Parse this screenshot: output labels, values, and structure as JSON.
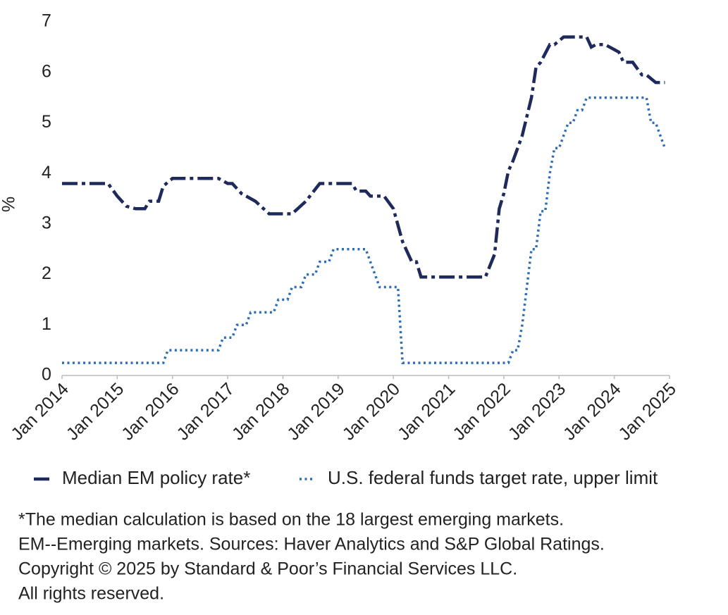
{
  "chart_data": {
    "type": "line",
    "ylabel": "%",
    "ylim": [
      0,
      7
    ],
    "yticks": [
      0,
      1,
      2,
      3,
      4,
      5,
      6,
      7
    ],
    "xlim": [
      "2014-01",
      "2025-01"
    ],
    "xticks": [
      {
        "value": "2014-01",
        "label": "Jan 2014"
      },
      {
        "value": "2015-01",
        "label": "Jan 2015"
      },
      {
        "value": "2016-01",
        "label": "Jan 2016"
      },
      {
        "value": "2017-01",
        "label": "Jan 2017"
      },
      {
        "value": "2018-01",
        "label": "Jan 2018"
      },
      {
        "value": "2019-01",
        "label": "Jan 2019"
      },
      {
        "value": "2020-01",
        "label": "Jan 2020"
      },
      {
        "value": "2021-01",
        "label": "Jan 2021"
      },
      {
        "value": "2022-01",
        "label": "Jan 2022"
      },
      {
        "value": "2023-01",
        "label": "Jan 2023"
      },
      {
        "value": "2024-01",
        "label": "Jan 2024"
      },
      {
        "value": "2025-01",
        "label": "Jan 2025"
      }
    ],
    "grid": false,
    "legend": "bottom",
    "series": [
      {
        "name": "Median EM policy rate*",
        "color": "#1f2a5c",
        "dash": "dashdot",
        "x": [
          "2014-01",
          "2014-11",
          "2015-01",
          "2015-03",
          "2015-05",
          "2015-07",
          "2015-08",
          "2015-10",
          "2015-11",
          "2016-01",
          "2016-11",
          "2017-01",
          "2017-02",
          "2017-04",
          "2017-07",
          "2017-10",
          "2018-03",
          "2018-06",
          "2018-09",
          "2019-04",
          "2019-05",
          "2019-07",
          "2019-08",
          "2019-11",
          "2020-01",
          "2020-03",
          "2020-05",
          "2020-06",
          "2020-07",
          "2021-09",
          "2021-11",
          "2021-12",
          "2022-01",
          "2022-02",
          "2022-03",
          "2022-05",
          "2022-07",
          "2022-08",
          "2022-09",
          "2022-11",
          "2022-12",
          "2023-02",
          "2023-07",
          "2023-08",
          "2023-09",
          "2023-11",
          "2024-01",
          "2024-02",
          "2024-03",
          "2024-05",
          "2024-07",
          "2024-08",
          "2024-10",
          "2024-12"
        ],
        "values": [
          3.8,
          3.8,
          3.55,
          3.35,
          3.3,
          3.3,
          3.45,
          3.45,
          3.75,
          3.9,
          3.9,
          3.8,
          3.8,
          3.6,
          3.45,
          3.2,
          3.2,
          3.45,
          3.8,
          3.8,
          3.65,
          3.65,
          3.55,
          3.55,
          3.3,
          2.65,
          2.25,
          2.25,
          1.95,
          1.95,
          2.4,
          3.3,
          3.6,
          4.05,
          4.25,
          4.75,
          5.5,
          6.1,
          6.2,
          6.55,
          6.55,
          6.7,
          6.7,
          6.5,
          6.55,
          6.55,
          6.45,
          6.4,
          6.2,
          6.2,
          5.95,
          5.95,
          5.8,
          5.8
        ]
      },
      {
        "name": "U.S. federal funds target rate, upper limit",
        "color": "#2e6db4",
        "dash": "dot",
        "x": [
          "2014-01",
          "2015-11",
          "2015-12",
          "2016-11",
          "2016-12",
          "2017-02",
          "2017-03",
          "2017-05",
          "2017-06",
          "2017-11",
          "2017-12",
          "2018-02",
          "2018-03",
          "2018-05",
          "2018-06",
          "2018-08",
          "2018-09",
          "2018-11",
          "2018-12",
          "2019-07",
          "2019-08",
          "2019-09",
          "2019-10",
          "2020-02",
          "2020-03",
          "2022-02",
          "2022-03",
          "2022-04",
          "2022-05",
          "2022-06",
          "2022-07",
          "2022-08",
          "2022-09",
          "2022-10",
          "2022-11",
          "2022-12",
          "2023-01",
          "2023-02",
          "2023-03",
          "2023-04",
          "2023-05",
          "2023-06",
          "2023-07",
          "2024-08",
          "2024-09",
          "2024-10",
          "2024-11",
          "2024-12"
        ],
        "values": [
          0.25,
          0.25,
          0.5,
          0.5,
          0.75,
          0.75,
          1.0,
          1.0,
          1.25,
          1.25,
          1.5,
          1.5,
          1.75,
          1.75,
          2.0,
          2.0,
          2.25,
          2.25,
          2.5,
          2.5,
          2.25,
          2.0,
          1.75,
          1.75,
          0.25,
          0.25,
          0.5,
          0.5,
          1.0,
          1.75,
          2.5,
          2.5,
          3.25,
          3.25,
          4.0,
          4.5,
          4.5,
          4.75,
          5.0,
          5.0,
          5.25,
          5.25,
          5.5,
          5.5,
          5.0,
          5.0,
          4.75,
          4.5
        ]
      }
    ],
    "notes": [
      "*The median calculation is based on the 18 largest emerging markets.",
      "EM--Emerging markets. Sources: Haver Analytics and S&P Global Ratings.",
      "Copyright © 2025 by Standard & Poor’s Financial Services LLC.",
      "All rights reserved."
    ]
  }
}
